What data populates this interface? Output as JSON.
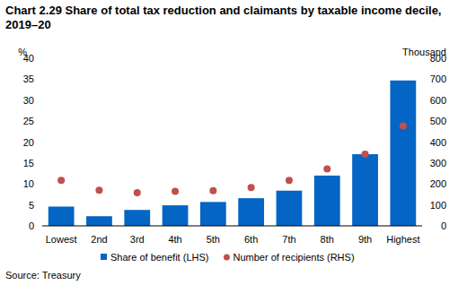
{
  "chart_data": {
    "type": "bar",
    "title": "Chart 2.29 Share of total tax reduction and claimants by taxable income decile, 2019–20",
    "y_label": "%",
    "y2_label": "Thousand",
    "source": "Source: Treasury",
    "categories": [
      "Lowest",
      "2nd",
      "3rd",
      "4th",
      "5th",
      "6th",
      "7th",
      "8th",
      "9th",
      "Highest"
    ],
    "series": [
      {
        "name": "Share of benefit (LHS)",
        "type": "bar",
        "color": "#0565c4",
        "values": [
          4.6,
          2.3,
          3.8,
          4.9,
          5.7,
          6.6,
          8.4,
          12.0,
          17.1,
          34.7
        ]
      },
      {
        "name": "Number of recipients (RHS)",
        "type": "scatter",
        "axis": "y2",
        "color": "#c0504d",
        "marker": "circle",
        "values": [
          217,
          170,
          158,
          165,
          168,
          183,
          217,
          272,
          342,
          477
        ]
      }
    ],
    "ylim": [
      0,
      40
    ],
    "yticks": [
      0,
      5,
      10,
      15,
      20,
      25,
      30,
      35,
      40
    ],
    "y2lim": [
      0,
      800
    ],
    "y2ticks": [
      0,
      100,
      200,
      300,
      400,
      500,
      600,
      700,
      800
    ],
    "grid": false,
    "legend": "bottom"
  }
}
